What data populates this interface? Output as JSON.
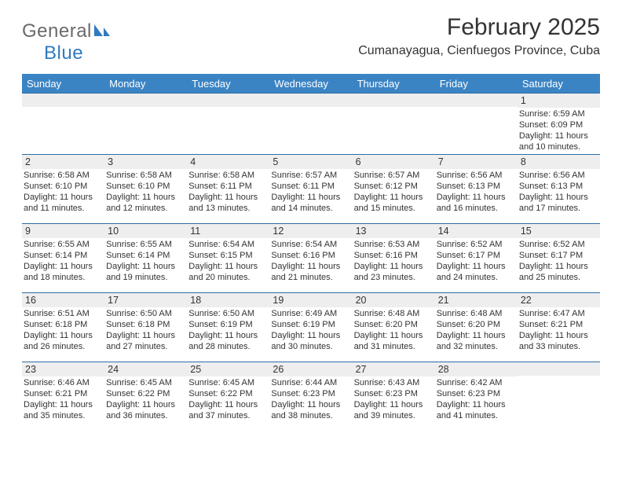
{
  "logo": {
    "general": "General",
    "blue": "Blue"
  },
  "title": {
    "month_year": "February 2025",
    "location": "Cumanayagua, Cienfuegos Province, Cuba"
  },
  "styling": {
    "header_bg": "#3b84c4",
    "header_text": "#ffffff",
    "row_border": "#2d6fa8",
    "daynum_bg": "#eeeeee",
    "body_text": "#333333",
    "logo_gray": "#6a6a6a",
    "logo_blue": "#2f7bbf",
    "page_bg": "#ffffff",
    "font_day_label": 13,
    "font_daynum": 12.5,
    "font_lines": 11,
    "font_title": 30,
    "font_location": 16
  },
  "day_labels": [
    "Sunday",
    "Monday",
    "Tuesday",
    "Wednesday",
    "Thursday",
    "Friday",
    "Saturday"
  ],
  "weeks": [
    [
      {
        "n": "",
        "sr": "",
        "ss": "",
        "dl": ""
      },
      {
        "n": "",
        "sr": "",
        "ss": "",
        "dl": ""
      },
      {
        "n": "",
        "sr": "",
        "ss": "",
        "dl": ""
      },
      {
        "n": "",
        "sr": "",
        "ss": "",
        "dl": ""
      },
      {
        "n": "",
        "sr": "",
        "ss": "",
        "dl": ""
      },
      {
        "n": "",
        "sr": "",
        "ss": "",
        "dl": ""
      },
      {
        "n": "1",
        "sr": "Sunrise: 6:59 AM",
        "ss": "Sunset: 6:09 PM",
        "dl": "Daylight: 11 hours and 10 minutes."
      }
    ],
    [
      {
        "n": "2",
        "sr": "Sunrise: 6:58 AM",
        "ss": "Sunset: 6:10 PM",
        "dl": "Daylight: 11 hours and 11 minutes."
      },
      {
        "n": "3",
        "sr": "Sunrise: 6:58 AM",
        "ss": "Sunset: 6:10 PM",
        "dl": "Daylight: 11 hours and 12 minutes."
      },
      {
        "n": "4",
        "sr": "Sunrise: 6:58 AM",
        "ss": "Sunset: 6:11 PM",
        "dl": "Daylight: 11 hours and 13 minutes."
      },
      {
        "n": "5",
        "sr": "Sunrise: 6:57 AM",
        "ss": "Sunset: 6:11 PM",
        "dl": "Daylight: 11 hours and 14 minutes."
      },
      {
        "n": "6",
        "sr": "Sunrise: 6:57 AM",
        "ss": "Sunset: 6:12 PM",
        "dl": "Daylight: 11 hours and 15 minutes."
      },
      {
        "n": "7",
        "sr": "Sunrise: 6:56 AM",
        "ss": "Sunset: 6:13 PM",
        "dl": "Daylight: 11 hours and 16 minutes."
      },
      {
        "n": "8",
        "sr": "Sunrise: 6:56 AM",
        "ss": "Sunset: 6:13 PM",
        "dl": "Daylight: 11 hours and 17 minutes."
      }
    ],
    [
      {
        "n": "9",
        "sr": "Sunrise: 6:55 AM",
        "ss": "Sunset: 6:14 PM",
        "dl": "Daylight: 11 hours and 18 minutes."
      },
      {
        "n": "10",
        "sr": "Sunrise: 6:55 AM",
        "ss": "Sunset: 6:14 PM",
        "dl": "Daylight: 11 hours and 19 minutes."
      },
      {
        "n": "11",
        "sr": "Sunrise: 6:54 AM",
        "ss": "Sunset: 6:15 PM",
        "dl": "Daylight: 11 hours and 20 minutes."
      },
      {
        "n": "12",
        "sr": "Sunrise: 6:54 AM",
        "ss": "Sunset: 6:16 PM",
        "dl": "Daylight: 11 hours and 21 minutes."
      },
      {
        "n": "13",
        "sr": "Sunrise: 6:53 AM",
        "ss": "Sunset: 6:16 PM",
        "dl": "Daylight: 11 hours and 23 minutes."
      },
      {
        "n": "14",
        "sr": "Sunrise: 6:52 AM",
        "ss": "Sunset: 6:17 PM",
        "dl": "Daylight: 11 hours and 24 minutes."
      },
      {
        "n": "15",
        "sr": "Sunrise: 6:52 AM",
        "ss": "Sunset: 6:17 PM",
        "dl": "Daylight: 11 hours and 25 minutes."
      }
    ],
    [
      {
        "n": "16",
        "sr": "Sunrise: 6:51 AM",
        "ss": "Sunset: 6:18 PM",
        "dl": "Daylight: 11 hours and 26 minutes."
      },
      {
        "n": "17",
        "sr": "Sunrise: 6:50 AM",
        "ss": "Sunset: 6:18 PM",
        "dl": "Daylight: 11 hours and 27 minutes."
      },
      {
        "n": "18",
        "sr": "Sunrise: 6:50 AM",
        "ss": "Sunset: 6:19 PM",
        "dl": "Daylight: 11 hours and 28 minutes."
      },
      {
        "n": "19",
        "sr": "Sunrise: 6:49 AM",
        "ss": "Sunset: 6:19 PM",
        "dl": "Daylight: 11 hours and 30 minutes."
      },
      {
        "n": "20",
        "sr": "Sunrise: 6:48 AM",
        "ss": "Sunset: 6:20 PM",
        "dl": "Daylight: 11 hours and 31 minutes."
      },
      {
        "n": "21",
        "sr": "Sunrise: 6:48 AM",
        "ss": "Sunset: 6:20 PM",
        "dl": "Daylight: 11 hours and 32 minutes."
      },
      {
        "n": "22",
        "sr": "Sunrise: 6:47 AM",
        "ss": "Sunset: 6:21 PM",
        "dl": "Daylight: 11 hours and 33 minutes."
      }
    ],
    [
      {
        "n": "23",
        "sr": "Sunrise: 6:46 AM",
        "ss": "Sunset: 6:21 PM",
        "dl": "Daylight: 11 hours and 35 minutes."
      },
      {
        "n": "24",
        "sr": "Sunrise: 6:45 AM",
        "ss": "Sunset: 6:22 PM",
        "dl": "Daylight: 11 hours and 36 minutes."
      },
      {
        "n": "25",
        "sr": "Sunrise: 6:45 AM",
        "ss": "Sunset: 6:22 PM",
        "dl": "Daylight: 11 hours and 37 minutes."
      },
      {
        "n": "26",
        "sr": "Sunrise: 6:44 AM",
        "ss": "Sunset: 6:23 PM",
        "dl": "Daylight: 11 hours and 38 minutes."
      },
      {
        "n": "27",
        "sr": "Sunrise: 6:43 AM",
        "ss": "Sunset: 6:23 PM",
        "dl": "Daylight: 11 hours and 39 minutes."
      },
      {
        "n": "28",
        "sr": "Sunrise: 6:42 AM",
        "ss": "Sunset: 6:23 PM",
        "dl": "Daylight: 11 hours and 41 minutes."
      },
      {
        "n": "",
        "sr": "",
        "ss": "",
        "dl": ""
      }
    ]
  ]
}
